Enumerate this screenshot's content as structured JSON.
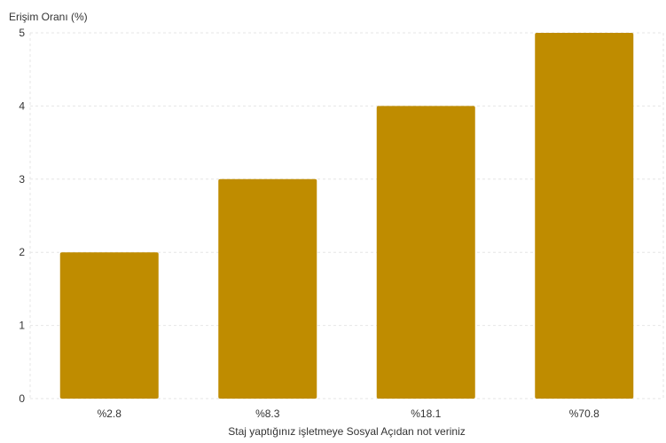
{
  "chart_data": {
    "type": "bar",
    "categories": [
      "%2.8",
      "%8.3",
      "%18.1",
      "%70.8"
    ],
    "values": [
      2,
      3,
      4,
      5
    ],
    "title": "",
    "xlabel": "Staj yaptığınız işletmeye Sosyal Açıdan not veriniz",
    "ylabel": "Erişim Oranı (%)",
    "ylim": [
      0,
      5
    ],
    "yticks": [
      0,
      1,
      2,
      3,
      4,
      5
    ],
    "grid": true,
    "bar_color": "#BF8C00",
    "grid_color": "#e6e6e6"
  }
}
